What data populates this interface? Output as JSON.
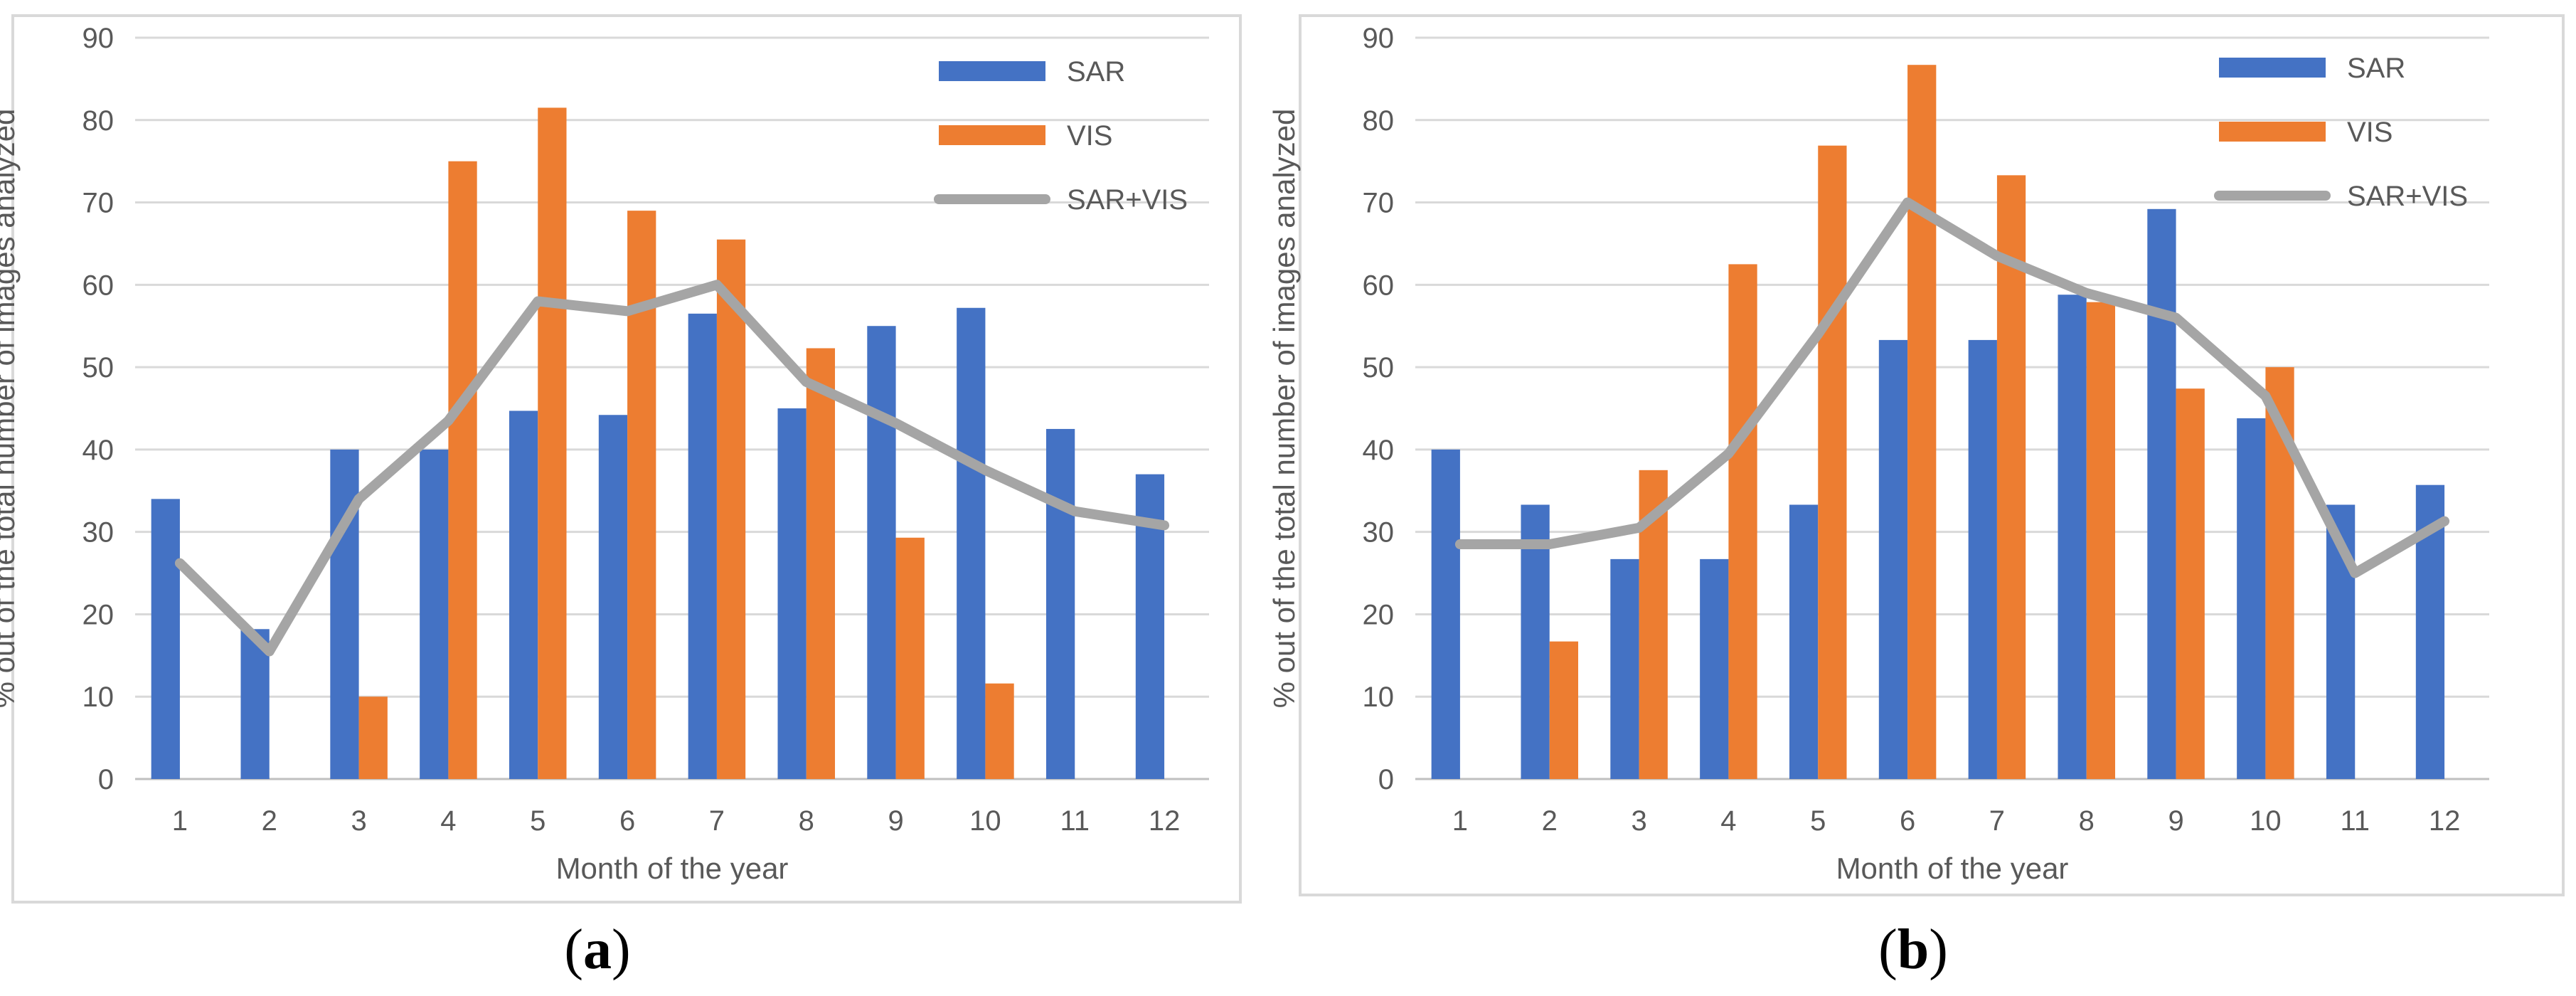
{
  "chart_data": [
    {
      "type": "bar",
      "panel_label": "a",
      "categories": [
        "1",
        "2",
        "3",
        "4",
        "5",
        "6",
        "7",
        "8",
        "9",
        "10",
        "11",
        "12"
      ],
      "xlabel": "Month of the year",
      "ylabel": "% out of the total number of  images analyzed",
      "ylim": [
        0,
        90
      ],
      "yticks": [
        0,
        10,
        20,
        30,
        40,
        50,
        60,
        70,
        80,
        90
      ],
      "grid": true,
      "legend_position": "top-right",
      "series": [
        {
          "name": "SAR",
          "kind": "bar",
          "color": "#4472C4",
          "values": [
            34,
            18.2,
            40,
            40,
            44.7,
            44.2,
            56.5,
            45,
            55,
            57.2,
            42.5,
            37
          ]
        },
        {
          "name": "VIS",
          "kind": "bar",
          "color": "#ED7D31",
          "values": [
            0,
            0,
            10,
            75,
            81.5,
            69,
            65.5,
            52.3,
            29.3,
            11.6,
            0,
            0
          ]
        },
        {
          "name": "SAR+VIS",
          "kind": "line",
          "color": "#A5A5A5",
          "values": [
            26.2,
            15.5,
            34,
            43.5,
            58,
            56.8,
            60,
            48.2,
            43.2,
            37.5,
            32.5,
            30.8
          ]
        }
      ]
    },
    {
      "type": "bar",
      "panel_label": "b",
      "categories": [
        "1",
        "2",
        "3",
        "4",
        "5",
        "6",
        "7",
        "8",
        "9",
        "10",
        "11",
        "12"
      ],
      "xlabel": "Month of the year",
      "ylabel": "% out of the total number of  images analyzed",
      "ylim": [
        0,
        90
      ],
      "yticks": [
        0,
        10,
        20,
        30,
        40,
        50,
        60,
        70,
        80,
        90
      ],
      "grid": true,
      "legend_position": "top-right",
      "series": [
        {
          "name": "SAR",
          "kind": "bar",
          "color": "#4472C4",
          "values": [
            40,
            33.3,
            26.7,
            26.7,
            33.3,
            53.3,
            53.3,
            58.8,
            69.2,
            43.8,
            33.3,
            35.7
          ]
        },
        {
          "name": "VIS",
          "kind": "bar",
          "color": "#ED7D31",
          "values": [
            0,
            16.7,
            37.5,
            62.5,
            76.9,
            86.7,
            73.3,
            57.9,
            47.4,
            50,
            0,
            0
          ]
        },
        {
          "name": "SAR+VIS",
          "kind": "line",
          "color": "#A5A5A5",
          "values": [
            28.5,
            28.5,
            30.5,
            39.5,
            54,
            70,
            63.5,
            59,
            56,
            46.5,
            25,
            31.3
          ]
        }
      ]
    }
  ]
}
